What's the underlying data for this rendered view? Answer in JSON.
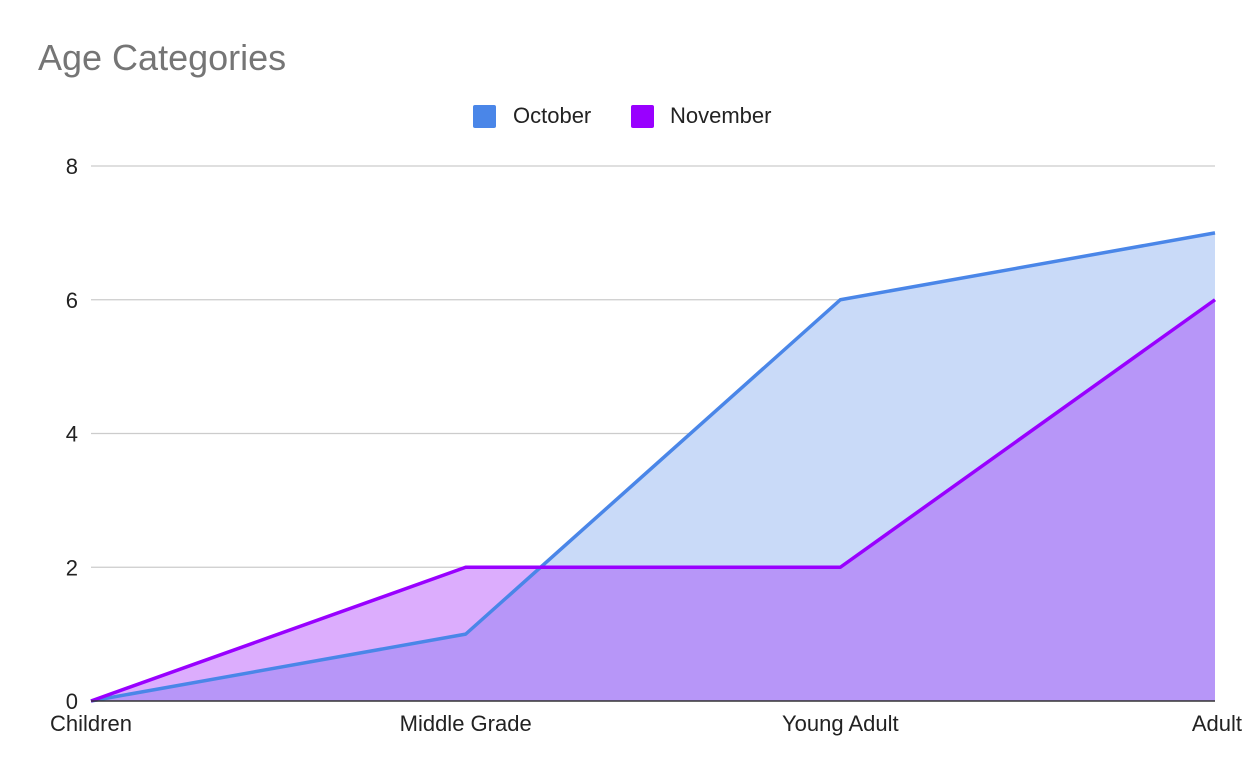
{
  "chart_data": {
    "type": "area",
    "title": "Age Categories",
    "categories": [
      "Children",
      "Middle Grade",
      "Young Adult",
      "Adult"
    ],
    "series": [
      {
        "name": "October",
        "values": [
          0,
          1,
          6,
          7
        ],
        "color": "#4a86e8",
        "fill": "#c9daf8"
      },
      {
        "name": "November",
        "values": [
          0,
          2,
          2,
          6
        ],
        "color": "#9900ff",
        "fill": "#dcadfd"
      }
    ],
    "overlap_fill": "#b796f8",
    "ylim": [
      0,
      8
    ],
    "yticks": [
      0,
      2,
      4,
      6,
      8
    ],
    "grid": true,
    "legend_position": "top"
  }
}
